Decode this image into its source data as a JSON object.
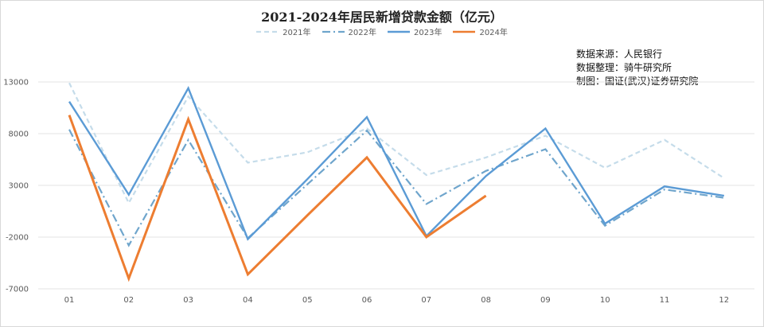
{
  "chart_data": {
    "type": "line",
    "title": "2021-2024年居民新增贷款金额（亿元）",
    "xlabel": "",
    "ylabel": "",
    "categories": [
      "01",
      "02",
      "03",
      "04",
      "05",
      "06",
      "07",
      "08",
      "09",
      "10",
      "11",
      "12"
    ],
    "yticks": [
      13000,
      8000,
      3000,
      -2000,
      -7000
    ],
    "ylim": [
      -7000,
      13000
    ],
    "grid": "horizontal",
    "legend_position": "top",
    "series": [
      {
        "name": "2021年",
        "color": "#c5dcea",
        "dash": "6,4",
        "width": 2.2,
        "values": [
          12900,
          1300,
          11600,
          5200,
          6200,
          8500,
          4000,
          5700,
          7800,
          4700,
          7400,
          3700
        ]
      },
      {
        "name": "2022年",
        "color": "#6fa5cc",
        "dash": "10,4,2,4",
        "width": 2.2,
        "values": [
          8400,
          -2800,
          7400,
          -2100,
          3100,
          8300,
          1200,
          4400,
          6500,
          -900,
          2600,
          1800
        ]
      },
      {
        "name": "2023年",
        "color": "#5b9bd5",
        "dash": "",
        "width": 2.4,
        "values": [
          11100,
          2100,
          12400,
          -2200,
          3600,
          9600,
          -1900,
          3900,
          8500,
          -700,
          2900,
          2000
        ]
      },
      {
        "name": "2024年",
        "color": "#ed7d31",
        "dash": "",
        "width": 3,
        "values": [
          9800,
          -6000,
          9400,
          -5600,
          100,
          5700,
          -2000,
          2000,
          null,
          null,
          null,
          null
        ]
      }
    ]
  },
  "source_note": [
    "数据来源：人民银行",
    "数据整理：骑牛研究所",
    "制图：国证(武汉)证券研究院"
  ]
}
